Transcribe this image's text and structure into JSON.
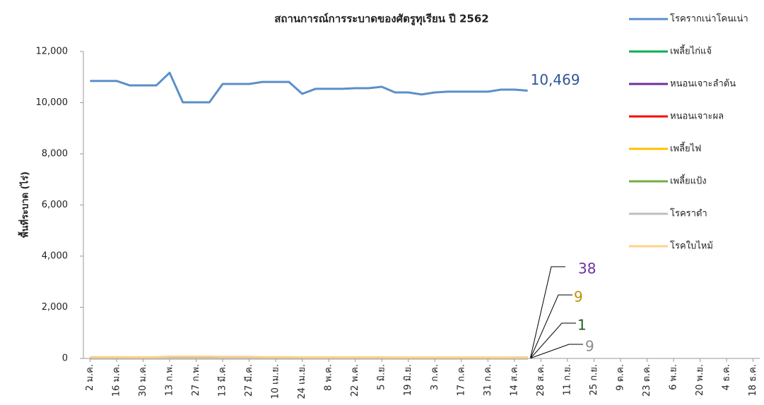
{
  "chart_data": {
    "type": "line",
    "title": "สถานการณ์การระบาดของศัตรูทุเรียน ปี 2562",
    "y_label": "พื้นที่ระบาด (ไร่)",
    "categories": [
      "2 ม.ค.",
      null,
      "16 ม.ค.",
      null,
      "30 ม.ค.",
      null,
      "13 ก.พ.",
      null,
      "27 ก.พ.",
      null,
      "13 มี.ค.",
      null,
      "27 มี.ค.",
      null,
      "10 เม.ย.",
      null,
      "24 เม.ย.",
      null,
      "8 พ.ค.",
      null,
      "22 พ.ค.",
      null,
      "5 มิ.ย.",
      null,
      "19 มิ.ย.",
      null,
      "3 ก.ค.",
      null,
      "17 ก.ค.",
      null,
      "31 ก.ค.",
      null,
      "14 ส.ค.",
      null,
      "28 ส.ค.",
      null,
      "11 ก.ย.",
      null,
      "25 ก.ย.",
      null,
      "9 ต.ค.",
      null,
      "23 ต.ค.",
      null,
      "6 พ.ย.",
      null,
      "20 พ.ย.",
      null,
      "4 ธ.ค.",
      null,
      "18 ธ.ค."
    ],
    "ylim": [
      0,
      12000
    ],
    "yticks": [
      0,
      {
        "value": 2000,
        "label": "2,000"
      },
      {
        "value": 4000,
        "label": "4,000"
      },
      {
        "value": 6000,
        "label": "6,000"
      },
      {
        "value": 8000,
        "label": "8,000"
      },
      {
        "value": 10000,
        "label": "10,000"
      },
      {
        "value": 12000,
        "label": "12,000"
      }
    ],
    "grid": false,
    "legend": "right",
    "series": [
      {
        "name": "โรครากเน่าโคนเน่า",
        "color": "#5b8fc9",
        "label_color": "#2f5597",
        "last_label": "10,469",
        "values": [
          10850,
          10850,
          10850,
          10675,
          10675,
          10675,
          11170,
          10014,
          10014,
          10014,
          10730,
          10730,
          10730,
          10810,
          10810,
          10810,
          10345,
          10540,
          10540,
          10540,
          10565,
          10565,
          10620,
          10400,
          10400,
          10320,
          10400,
          10430,
          10430,
          10430,
          10430,
          10510,
          10510,
          10469,
          null,
          null,
          null,
          null,
          null,
          null,
          null,
          null,
          null,
          null,
          null,
          null,
          null,
          null,
          null,
          null,
          null
        ]
      },
      {
        "name": "เพลี้ยไก่แจ้",
        "color": "#00b050",
        "values": [
          40,
          30,
          20,
          10,
          10,
          10,
          10,
          10,
          10,
          10,
          10,
          10,
          10,
          10,
          10,
          10,
          10,
          10,
          10,
          10,
          10,
          10,
          10,
          10,
          10,
          10,
          10,
          10,
          10,
          10,
          10,
          10,
          10,
          0,
          null,
          null,
          null,
          null,
          null,
          null,
          null,
          null,
          null,
          null,
          null,
          null,
          null,
          null,
          null,
          null,
          null
        ]
      },
      {
        "name": "หนอนเจาะลำต้น",
        "color": "#7030a0",
        "label_color": "#7030a0",
        "show_last_label": true,
        "values": [
          30,
          30,
          30,
          30,
          30,
          30,
          30,
          30,
          30,
          30,
          30,
          30,
          30,
          30,
          30,
          30,
          30,
          30,
          30,
          30,
          30,
          30,
          30,
          30,
          30,
          30,
          30,
          30,
          30,
          30,
          30,
          35,
          38,
          38,
          null,
          null,
          null,
          null,
          null,
          null,
          null,
          null,
          null,
          null,
          null,
          null,
          null,
          null,
          null,
          null,
          null
        ]
      },
      {
        "name": "หนอนเจาะผล",
        "color": "#ff0000",
        "values": [
          0,
          0,
          0,
          0,
          0,
          0,
          0,
          0,
          0,
          0,
          0,
          0,
          0,
          0,
          0,
          0,
          0,
          0,
          0,
          0,
          0,
          0,
          0,
          0,
          0,
          0,
          0,
          0,
          0,
          0,
          0,
          0,
          0,
          0,
          null,
          null,
          null,
          null,
          null,
          null,
          null,
          null,
          null,
          null,
          null,
          null,
          null,
          null,
          null,
          null,
          null
        ]
      },
      {
        "name": "เพลี้ยไฟ",
        "color": "#ffc000",
        "label_color": "#c09000",
        "show_last_label": true,
        "values": [
          9,
          9,
          9,
          9,
          9,
          9,
          9,
          9,
          9,
          9,
          9,
          9,
          9,
          9,
          9,
          9,
          9,
          9,
          9,
          9,
          9,
          9,
          9,
          9,
          9,
          9,
          9,
          9,
          9,
          9,
          9,
          9,
          9,
          9,
          null,
          null,
          null,
          null,
          null,
          null,
          null,
          null,
          null,
          null,
          null,
          null,
          null,
          null,
          null,
          null,
          null
        ]
      },
      {
        "name": "เพลี้ยแป้ง",
        "color": "#70ad47",
        "label_color": "#1e5c1e",
        "show_last_label": true,
        "values": [
          1,
          1,
          1,
          1,
          1,
          1,
          1,
          1,
          1,
          1,
          1,
          1,
          1,
          1,
          1,
          1,
          1,
          1,
          1,
          1,
          1,
          1,
          1,
          1,
          1,
          1,
          1,
          1,
          1,
          1,
          1,
          1,
          1,
          1,
          null,
          null,
          null,
          null,
          null,
          null,
          null,
          null,
          null,
          null,
          null,
          null,
          null,
          null,
          null,
          null,
          null
        ]
      },
      {
        "name": "โรคราดำ",
        "color": "#bfbfbf",
        "label_color": "#8c8c8c",
        "show_last_label": true,
        "values": [
          9,
          9,
          9,
          9,
          9,
          9,
          9,
          9,
          9,
          9,
          9,
          9,
          9,
          9,
          9,
          9,
          9,
          9,
          9,
          9,
          9,
          9,
          9,
          9,
          9,
          9,
          9,
          9,
          9,
          9,
          9,
          9,
          9,
          9,
          null,
          null,
          null,
          null,
          null,
          null,
          null,
          null,
          null,
          null,
          null,
          null,
          null,
          null,
          null,
          null,
          null
        ]
      },
      {
        "name": "โรคใบไหม้",
        "color": "#ffd28a",
        "values": [
          60,
          60,
          60,
          55,
          55,
          55,
          80,
          80,
          80,
          80,
          70,
          70,
          70,
          60,
          60,
          60,
          50,
          50,
          50,
          50,
          50,
          50,
          50,
          45,
          45,
          45,
          45,
          45,
          45,
          45,
          45,
          40,
          40,
          40,
          null,
          null,
          null,
          null,
          null,
          null,
          null,
          null,
          null,
          null,
          null,
          null,
          null,
          null,
          null,
          null,
          null
        ]
      }
    ]
  }
}
